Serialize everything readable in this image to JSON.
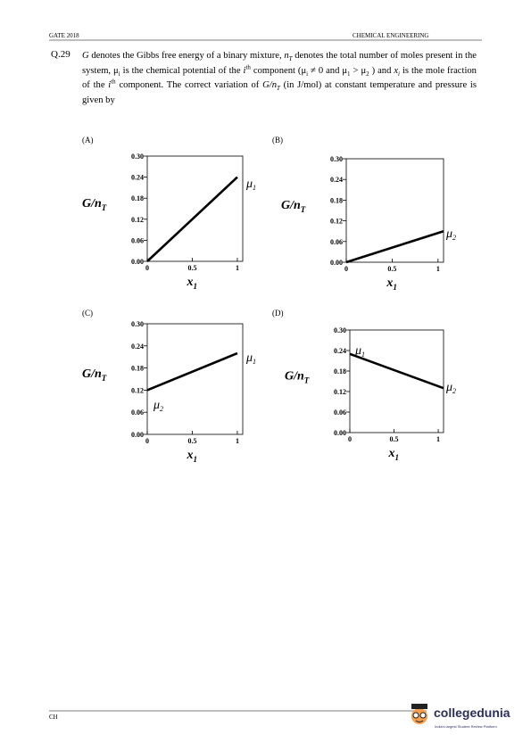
{
  "header": {
    "left": "GATE 2018",
    "right": "CHEMICAL ENGINEERING"
  },
  "question": {
    "number": "Q.29",
    "segments": [
      "G",
      " denotes the Gibbs free energy of a binary mixture, ",
      "n",
      "T",
      " denotes the total number of moles present in the system, ",
      "μ",
      "i",
      " is the chemical potential of the ",
      "i",
      "th",
      " component (",
      "μ",
      "i",
      " ≠ 0 and ",
      "μ",
      "1",
      " > ",
      "μ",
      "2",
      " ) and ",
      "x",
      "i",
      " is the mole fraction of the ",
      "i",
      "th",
      " component. The correct variation of ",
      "G/n",
      "T",
      " (in J/mol) at constant temperature and pressure is given by"
    ]
  },
  "charts": [
    {
      "type": "line",
      "label": "(A)",
      "ylabel": "G/n",
      "ylabel_sub": "T",
      "xlabel": "x",
      "xlabel_sub": "1",
      "xlim": [
        0,
        1.06
      ],
      "ylim": [
        0,
        0.3
      ],
      "xticks": [
        0,
        0.5,
        1
      ],
      "yticks": [
        {
          "value": 0,
          "label": "0.00"
        },
        {
          "value": 0.06,
          "label": "0.06"
        },
        {
          "value": 0.12,
          "label": "0.12"
        },
        {
          "value": 0.18,
          "label": "0.18"
        },
        {
          "value": 0.24,
          "label": "0.24"
        },
        {
          "value": 0.3,
          "label": "0.30"
        }
      ],
      "x": [
        0,
        1
      ],
      "values": [
        0,
        0.24
      ],
      "annotations": [
        {
          "text": "μ",
          "sub": "1"
        }
      ]
    },
    {
      "type": "line",
      "label": "(B)",
      "ylabel": "G/n",
      "ylabel_sub": "T",
      "xlabel": "x",
      "xlabel_sub": "1",
      "xlim": [
        0,
        1.06
      ],
      "ylim": [
        0,
        0.3
      ],
      "xticks": [
        0,
        0.5,
        1
      ],
      "yticks": [
        {
          "value": 0,
          "label": "0.00"
        },
        {
          "value": 0.06,
          "label": "0.06"
        },
        {
          "value": 0.12,
          "label": "0.12"
        },
        {
          "value": 0.18,
          "label": "0.18"
        },
        {
          "value": 0.24,
          "label": "0.24"
        },
        {
          "value": 0.3,
          "label": "0.30"
        }
      ],
      "x": [
        0,
        1.06
      ],
      "values": [
        0,
        0.09
      ],
      "annotations": [
        {
          "text": "μ",
          "sub": "2"
        }
      ]
    },
    {
      "type": "line",
      "label": "(C)",
      "ylabel": "G/n",
      "ylabel_sub": "T",
      "xlabel": "x",
      "xlabel_sub": "1",
      "xlim": [
        0,
        1.06
      ],
      "ylim": [
        0,
        0.3
      ],
      "xticks": [
        0,
        0.5,
        1
      ],
      "yticks": [
        {
          "value": 0,
          "label": "0.00"
        },
        {
          "value": 0.06,
          "label": "0.06"
        },
        {
          "value": 0.12,
          "label": "0.12"
        },
        {
          "value": 0.18,
          "label": "0.18"
        },
        {
          "value": 0.24,
          "label": "0.24"
        },
        {
          "value": 0.3,
          "label": "0.30"
        }
      ],
      "x": [
        0,
        1
      ],
      "values": [
        0.12,
        0.22
      ],
      "annotations": [
        {
          "text": "μ",
          "sub": "1"
        },
        {
          "text": "μ",
          "sub": "2"
        }
      ]
    },
    {
      "type": "line",
      "label": "(D)",
      "ylabel": "G/n",
      "ylabel_sub": "T",
      "xlabel": "x",
      "xlabel_sub": "1",
      "xlim": [
        0,
        1.06
      ],
      "ylim": [
        0,
        0.3
      ],
      "xticks": [
        0,
        0.5,
        1
      ],
      "yticks": [
        {
          "value": 0,
          "label": "0.00"
        },
        {
          "value": 0.06,
          "label": "0.06"
        },
        {
          "value": 0.12,
          "label": "0.12"
        },
        {
          "value": 0.18,
          "label": "0.18"
        },
        {
          "value": 0.24,
          "label": "0.24"
        },
        {
          "value": 0.3,
          "label": "0.30"
        }
      ],
      "x": [
        0,
        1.06
      ],
      "values": [
        0.23,
        0.13
      ],
      "annotations": [
        {
          "text": "μ",
          "sub": "1"
        },
        {
          "text": "μ",
          "sub": "2"
        }
      ]
    }
  ],
  "footer": {
    "left": "CH",
    "brand": "collegedunia",
    "tagline": "India's largest Student Review Platform"
  }
}
